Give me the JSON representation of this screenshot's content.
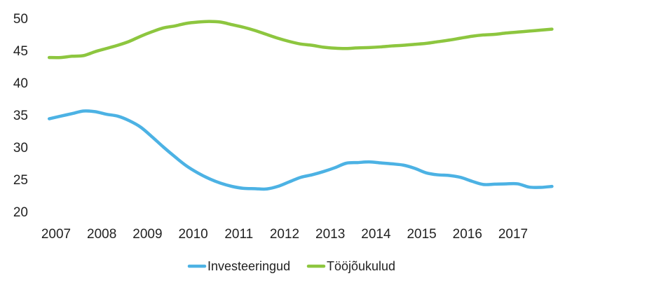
{
  "chart_data": {
    "type": "line",
    "title": "",
    "xlabel": "",
    "ylabel": "",
    "ylim": [
      20,
      50
    ],
    "yticks": [
      "50",
      "45",
      "40",
      "35",
      "30",
      "25",
      "20"
    ],
    "xlim": [
      2007.0,
      2018.25
    ],
    "xticks": [
      "2007",
      "2008",
      "2009",
      "2010",
      "2011",
      "2012",
      "2013",
      "2014",
      "2015",
      "2016",
      "2017"
    ],
    "grid": false,
    "legend": "bottom-center",
    "series": [
      {
        "name": "Investeeringud",
        "color": "#4cb2e4",
        "points": [
          [
            2006.85,
            34.4
          ],
          [
            2007.1,
            34.8
          ],
          [
            2007.35,
            35.2
          ],
          [
            2007.6,
            35.6
          ],
          [
            2007.85,
            35.5
          ],
          [
            2008.1,
            35.1
          ],
          [
            2008.35,
            34.8
          ],
          [
            2008.6,
            34.1
          ],
          [
            2008.85,
            33.1
          ],
          [
            2009.1,
            31.6
          ],
          [
            2009.35,
            30.0
          ],
          [
            2009.6,
            28.5
          ],
          [
            2009.85,
            27.1
          ],
          [
            2010.1,
            26.0
          ],
          [
            2010.35,
            25.1
          ],
          [
            2010.6,
            24.4
          ],
          [
            2010.85,
            23.9
          ],
          [
            2011.1,
            23.6
          ],
          [
            2011.35,
            23.55
          ],
          [
            2011.6,
            23.5
          ],
          [
            2011.85,
            23.9
          ],
          [
            2012.1,
            24.6
          ],
          [
            2012.35,
            25.3
          ],
          [
            2012.6,
            25.7
          ],
          [
            2012.85,
            26.2
          ],
          [
            2013.1,
            26.8
          ],
          [
            2013.35,
            27.5
          ],
          [
            2013.6,
            27.6
          ],
          [
            2013.85,
            27.7
          ],
          [
            2014.1,
            27.55
          ],
          [
            2014.35,
            27.4
          ],
          [
            2014.6,
            27.2
          ],
          [
            2014.85,
            26.7
          ],
          [
            2015.1,
            26.0
          ],
          [
            2015.35,
            25.7
          ],
          [
            2015.6,
            25.6
          ],
          [
            2015.85,
            25.3
          ],
          [
            2016.1,
            24.7
          ],
          [
            2016.35,
            24.2
          ],
          [
            2016.6,
            24.25
          ],
          [
            2016.85,
            24.3
          ],
          [
            2017.1,
            24.3
          ],
          [
            2017.35,
            23.8
          ],
          [
            2017.6,
            23.75
          ],
          [
            2017.85,
            23.9
          ]
        ]
      },
      {
        "name": "Tööjõukulud",
        "color": "#8dc63f",
        "points": [
          [
            2006.85,
            43.9
          ],
          [
            2007.1,
            43.9
          ],
          [
            2007.35,
            44.1
          ],
          [
            2007.6,
            44.2
          ],
          [
            2007.85,
            44.8
          ],
          [
            2008.1,
            45.3
          ],
          [
            2008.35,
            45.8
          ],
          [
            2008.6,
            46.4
          ],
          [
            2008.85,
            47.2
          ],
          [
            2009.1,
            47.9
          ],
          [
            2009.35,
            48.5
          ],
          [
            2009.6,
            48.8
          ],
          [
            2009.85,
            49.2
          ],
          [
            2010.1,
            49.4
          ],
          [
            2010.35,
            49.5
          ],
          [
            2010.6,
            49.4
          ],
          [
            2010.85,
            49.0
          ],
          [
            2011.1,
            48.6
          ],
          [
            2011.35,
            48.1
          ],
          [
            2011.6,
            47.5
          ],
          [
            2011.85,
            46.9
          ],
          [
            2012.1,
            46.4
          ],
          [
            2012.35,
            46.0
          ],
          [
            2012.6,
            45.8
          ],
          [
            2012.85,
            45.5
          ],
          [
            2013.1,
            45.35
          ],
          [
            2013.35,
            45.3
          ],
          [
            2013.6,
            45.4
          ],
          [
            2013.85,
            45.45
          ],
          [
            2014.1,
            45.55
          ],
          [
            2014.35,
            45.7
          ],
          [
            2014.6,
            45.8
          ],
          [
            2014.85,
            45.95
          ],
          [
            2015.1,
            46.1
          ],
          [
            2015.35,
            46.35
          ],
          [
            2015.6,
            46.6
          ],
          [
            2015.85,
            46.9
          ],
          [
            2016.1,
            47.2
          ],
          [
            2016.35,
            47.4
          ],
          [
            2016.6,
            47.5
          ],
          [
            2016.85,
            47.7
          ],
          [
            2017.1,
            47.85
          ],
          [
            2017.35,
            48.0
          ],
          [
            2017.6,
            48.15
          ],
          [
            2017.85,
            48.3
          ]
        ]
      }
    ]
  }
}
